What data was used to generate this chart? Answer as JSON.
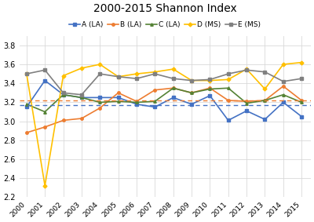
{
  "title": "2000-2015 Shannon Index",
  "years": [
    2000,
    2001,
    2002,
    2003,
    2004,
    2005,
    2006,
    2007,
    2008,
    2009,
    2010,
    2011,
    2012,
    2013,
    2014,
    2015
  ],
  "series_order": [
    "A (LA)",
    "B (LA)",
    "C (LA)",
    "D (MS)",
    "E (MS)"
  ],
  "series": {
    "A (LA)": [
      3.15,
      3.43,
      3.28,
      3.25,
      3.25,
      3.25,
      3.18,
      3.15,
      3.25,
      3.18,
      3.27,
      3.01,
      3.11,
      3.02,
      3.2,
      3.05
    ],
    "B (LA)": [
      2.88,
      2.94,
      3.01,
      3.03,
      3.14,
      3.3,
      3.21,
      3.33,
      3.35,
      3.3,
      3.35,
      3.22,
      3.21,
      3.22,
      3.37,
      3.22
    ],
    "C (LA)": [
      3.18,
      3.1,
      3.28,
      3.25,
      3.2,
      3.21,
      3.2,
      3.21,
      3.35,
      3.3,
      3.34,
      3.35,
      3.19,
      3.22,
      3.28,
      3.2
    ],
    "D (MS)": [
      3.5,
      2.32,
      3.48,
      3.56,
      3.6,
      3.47,
      3.5,
      3.52,
      3.55,
      3.43,
      3.43,
      3.44,
      3.55,
      3.34,
      3.6,
      3.62
    ],
    "E (MS)": [
      3.5,
      3.54,
      3.3,
      3.28,
      3.5,
      3.47,
      3.45,
      3.5,
      3.45,
      3.43,
      3.44,
      3.5,
      3.54,
      3.52,
      3.42,
      3.45
    ]
  },
  "colors": {
    "A (LA)": "#4472C4",
    "B (LA)": "#ED7D31",
    "C (LA)": "#548235",
    "D (MS)": "#FFC000",
    "E (MS)": "#808080"
  },
  "markers": {
    "A (LA)": "s",
    "B (LA)": "o",
    "C (LA)": "^",
    "D (MS)": "D",
    "E (MS)": "s"
  },
  "hline_orange": 3.22,
  "hline_blue": 3.17,
  "ylim": [
    2.2,
    3.9
  ],
  "yticks": [
    2.2,
    2.4,
    2.6,
    2.8,
    3.0,
    3.2,
    3.4,
    3.6,
    3.8
  ],
  "bg_color": "#FFFFFF",
  "plot_bg_color": "#FFFFFF",
  "grid_color": "#D9D9D9"
}
